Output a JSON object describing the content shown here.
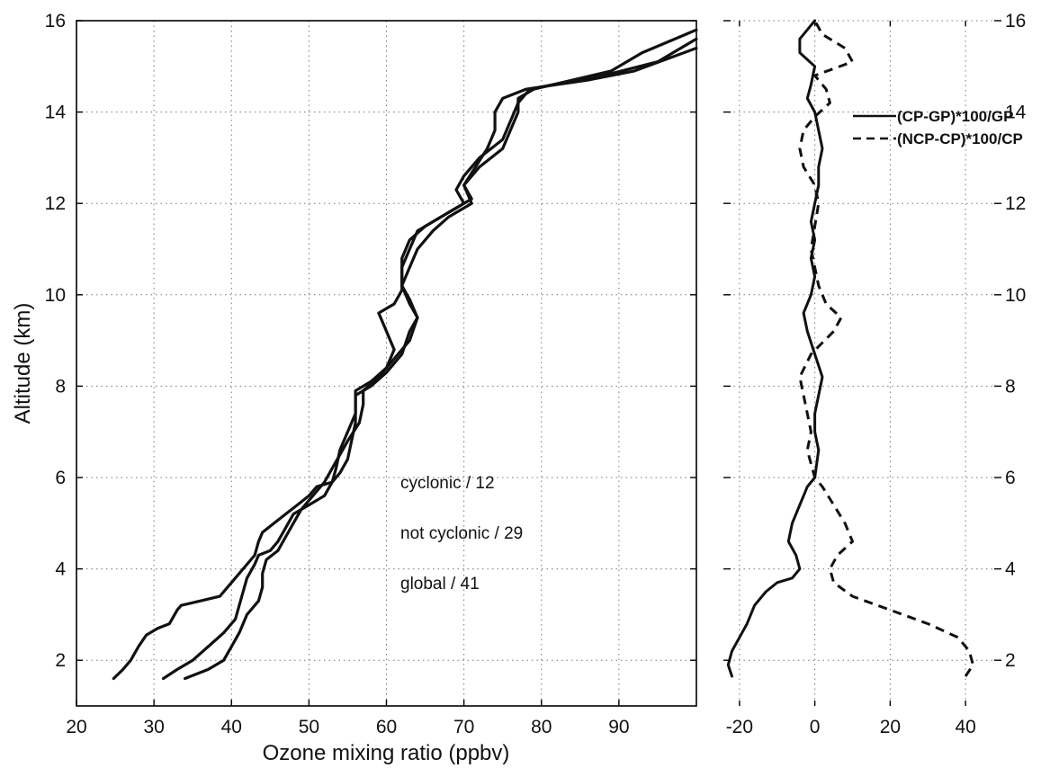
{
  "chart_data": [
    {
      "type": "line",
      "xlabel": "Ozone mixing ratio (ppbv)",
      "ylabel": "Altitude (km)",
      "xlim": [
        20,
        100
      ],
      "ylim": [
        1,
        16
      ],
      "xticks": [
        20,
        30,
        40,
        50,
        60,
        70,
        80,
        90
      ],
      "yticks": [
        2,
        4,
        6,
        8,
        10,
        12,
        14,
        16
      ],
      "grid": true,
      "annotations": [
        "cyclonic / 12",
        "not cyclonic / 29",
        "global / 41"
      ],
      "series": [
        {
          "points": [
            [
              24.8,
              1.6
            ],
            [
              26,
              1.8
            ],
            [
              27,
              2.0
            ],
            [
              28,
              2.3
            ],
            [
              29,
              2.55
            ],
            [
              30.5,
              2.7
            ],
            [
              32,
              2.8
            ],
            [
              33,
              3.1
            ],
            [
              33.5,
              3.2
            ],
            [
              36,
              3.3
            ],
            [
              38.5,
              3.4
            ],
            [
              40,
              3.7
            ],
            [
              41.5,
              4.0
            ],
            [
              43,
              4.3
            ],
            [
              43.5,
              4.6
            ],
            [
              44,
              4.8
            ],
            [
              45.5,
              5.0
            ],
            [
              47,
              5.2
            ],
            [
              48.5,
              5.4
            ],
            [
              50,
              5.6
            ],
            [
              51,
              5.8
            ],
            [
              53,
              5.9
            ],
            [
              54,
              6.1
            ],
            [
              55,
              6.4
            ],
            [
              55.5,
              6.8
            ],
            [
              56,
              7.2
            ],
            [
              56,
              7.6
            ],
            [
              56,
              7.9
            ],
            [
              58,
              8.1
            ],
            [
              60,
              8.4
            ],
            [
              61,
              8.8
            ],
            [
              60,
              9.2
            ],
            [
              59,
              9.6
            ],
            [
              61,
              9.8
            ],
            [
              62,
              10.1
            ],
            [
              62,
              10.4
            ],
            [
              62,
              10.8
            ],
            [
              63,
              11.2
            ],
            [
              65,
              11.5
            ],
            [
              68,
              11.8
            ],
            [
              71,
              12.1
            ],
            [
              70,
              12.4
            ],
            [
              71.5,
              12.8
            ],
            [
              73,
              13.2
            ],
            [
              74,
              13.6
            ],
            [
              74,
              14.0
            ],
            [
              75,
              14.3
            ],
            [
              78,
              14.5
            ],
            [
              82,
              14.6
            ],
            [
              86,
              14.7
            ],
            [
              92,
              14.9
            ],
            [
              100,
              15.4
            ]
          ]
        },
        {
          "points": [
            [
              31.2,
              1.6
            ],
            [
              33,
              1.8
            ],
            [
              35,
              2.0
            ],
            [
              37,
              2.3
            ],
            [
              39,
              2.6
            ],
            [
              40.5,
              2.9
            ],
            [
              41,
              3.2
            ],
            [
              41.5,
              3.5
            ],
            [
              42,
              3.8
            ],
            [
              43,
              4.1
            ],
            [
              43.5,
              4.3
            ],
            [
              45,
              4.4
            ],
            [
              46,
              4.6
            ],
            [
              47,
              4.9
            ],
            [
              48,
              5.2
            ],
            [
              50,
              5.4
            ],
            [
              52,
              5.6
            ],
            [
              53,
              5.9
            ],
            [
              53.5,
              6.2
            ],
            [
              54,
              6.6
            ],
            [
              55,
              7.0
            ],
            [
              56,
              7.4
            ],
            [
              56,
              7.8
            ],
            [
              58,
              8.0
            ],
            [
              60,
              8.3
            ],
            [
              62,
              8.7
            ],
            [
              63,
              9.2
            ],
            [
              64,
              9.5
            ],
            [
              63,
              9.8
            ],
            [
              62,
              10.2
            ],
            [
              62,
              10.6
            ],
            [
              63,
              11.0
            ],
            [
              64,
              11.4
            ],
            [
              67,
              11.7
            ],
            [
              70,
              12.0
            ],
            [
              69,
              12.3
            ],
            [
              70,
              12.6
            ],
            [
              72,
              13.0
            ],
            [
              75,
              13.4
            ],
            [
              76,
              13.8
            ],
            [
              77,
              14.2
            ],
            [
              78.5,
              14.5
            ],
            [
              83,
              14.65
            ],
            [
              88,
              14.8
            ],
            [
              95,
              15.1
            ],
            [
              100,
              15.6
            ]
          ]
        },
        {
          "points": [
            [
              34,
              1.6
            ],
            [
              37,
              1.8
            ],
            [
              39,
              2.0
            ],
            [
              40,
              2.3
            ],
            [
              41,
              2.6
            ],
            [
              42,
              3.0
            ],
            [
              43.5,
              3.3
            ],
            [
              44,
              3.6
            ],
            [
              44,
              3.9
            ],
            [
              44.5,
              4.2
            ],
            [
              46,
              4.4
            ],
            [
              47,
              4.7
            ],
            [
              48,
              5.0
            ],
            [
              49,
              5.3
            ],
            [
              50.5,
              5.6
            ],
            [
              52,
              5.9
            ],
            [
              53,
              6.2
            ],
            [
              54,
              6.5
            ],
            [
              55,
              6.8
            ],
            [
              56.5,
              7.2
            ],
            [
              57,
              7.6
            ],
            [
              57,
              7.9
            ],
            [
              59,
              8.2
            ],
            [
              61,
              8.6
            ],
            [
              63,
              9.0
            ],
            [
              64,
              9.5
            ],
            [
              63,
              9.9
            ],
            [
              62,
              10.2
            ],
            [
              63,
              10.6
            ],
            [
              64,
              11.0
            ],
            [
              66,
              11.4
            ],
            [
              68,
              11.7
            ],
            [
              71,
              12.0
            ],
            [
              70,
              12.4
            ],
            [
              72,
              12.8
            ],
            [
              75,
              13.2
            ],
            [
              76,
              13.6
            ],
            [
              77,
              14.0
            ],
            [
              77,
              14.3
            ],
            [
              79,
              14.5
            ],
            [
              84,
              14.7
            ],
            [
              89,
              14.9
            ],
            [
              93,
              15.3
            ],
            [
              100,
              15.8
            ]
          ]
        }
      ]
    },
    {
      "type": "line",
      "xlim": [
        -30,
        50
      ],
      "ylim": [
        1,
        16
      ],
      "xticks": [
        -20,
        0,
        20,
        40
      ],
      "yticks": [
        2,
        4,
        6,
        8,
        10,
        12,
        14,
        16
      ],
      "grid": true,
      "legend_position": "top-right",
      "series": [
        {
          "name": "(CP-GP)*100/GP",
          "style": "solid",
          "points": [
            [
              -22,
              1.65
            ],
            [
              -23,
              1.9
            ],
            [
              -22,
              2.2
            ],
            [
              -20,
              2.5
            ],
            [
              -18,
              2.8
            ],
            [
              -16,
              3.2
            ],
            [
              -13,
              3.5
            ],
            [
              -10,
              3.7
            ],
            [
              -6,
              3.8
            ],
            [
              -4,
              4.0
            ],
            [
              -5,
              4.3
            ],
            [
              -7,
              4.6
            ],
            [
              -6,
              5.0
            ],
            [
              -4,
              5.4
            ],
            [
              -2,
              5.8
            ],
            [
              0,
              6.0
            ],
            [
              0.5,
              6.3
            ],
            [
              1,
              6.6
            ],
            [
              0,
              7.0
            ],
            [
              0,
              7.4
            ],
            [
              1,
              7.8
            ],
            [
              2,
              8.2
            ],
            [
              0,
              8.7
            ],
            [
              -2,
              9.2
            ],
            [
              -3,
              9.6
            ],
            [
              -1,
              10.0
            ],
            [
              0,
              10.4
            ],
            [
              -1,
              10.8
            ],
            [
              0,
              11.2
            ],
            [
              -1,
              11.6
            ],
            [
              0,
              12.0
            ],
            [
              1,
              12.4
            ],
            [
              1,
              12.8
            ],
            [
              2,
              13.2
            ],
            [
              1,
              13.6
            ],
            [
              0,
              14.0
            ],
            [
              -2,
              14.3
            ],
            [
              -1,
              14.6
            ],
            [
              0,
              15.0
            ],
            [
              -4,
              15.3
            ],
            [
              -4,
              15.6
            ],
            [
              -1,
              15.9
            ],
            [
              0,
              16.0
            ]
          ]
        },
        {
          "name": "(NCP-CP)*100/CP",
          "style": "dashed",
          "points": [
            [
              40,
              1.65
            ],
            [
              42,
              1.9
            ],
            [
              41,
              2.2
            ],
            [
              38,
              2.5
            ],
            [
              30,
              2.8
            ],
            [
              20,
              3.1
            ],
            [
              10,
              3.4
            ],
            [
              5,
              3.7
            ],
            [
              4,
              4.0
            ],
            [
              6,
              4.3
            ],
            [
              10,
              4.6
            ],
            [
              8,
              5.0
            ],
            [
              5,
              5.4
            ],
            [
              2,
              5.8
            ],
            [
              0,
              6.0
            ],
            [
              -1,
              6.3
            ],
            [
              -2,
              6.6
            ],
            [
              -1,
              7.0
            ],
            [
              -2,
              7.4
            ],
            [
              -3,
              7.8
            ],
            [
              -4,
              8.2
            ],
            [
              -1,
              8.7
            ],
            [
              5,
              9.2
            ],
            [
              7,
              9.5
            ],
            [
              3,
              9.8
            ],
            [
              1,
              10.2
            ],
            [
              0,
              10.6
            ],
            [
              -1,
              11.0
            ],
            [
              0,
              11.5
            ],
            [
              1,
              12.0
            ],
            [
              0,
              12.4
            ],
            [
              -3,
              12.8
            ],
            [
              -4,
              13.2
            ],
            [
              -3,
              13.6
            ],
            [
              0,
              13.9
            ],
            [
              4,
              14.2
            ],
            [
              3,
              14.5
            ],
            [
              0,
              14.8
            ],
            [
              10,
              15.1
            ],
            [
              8,
              15.4
            ],
            [
              2,
              15.7
            ],
            [
              0,
              16.0
            ]
          ]
        }
      ]
    }
  ]
}
